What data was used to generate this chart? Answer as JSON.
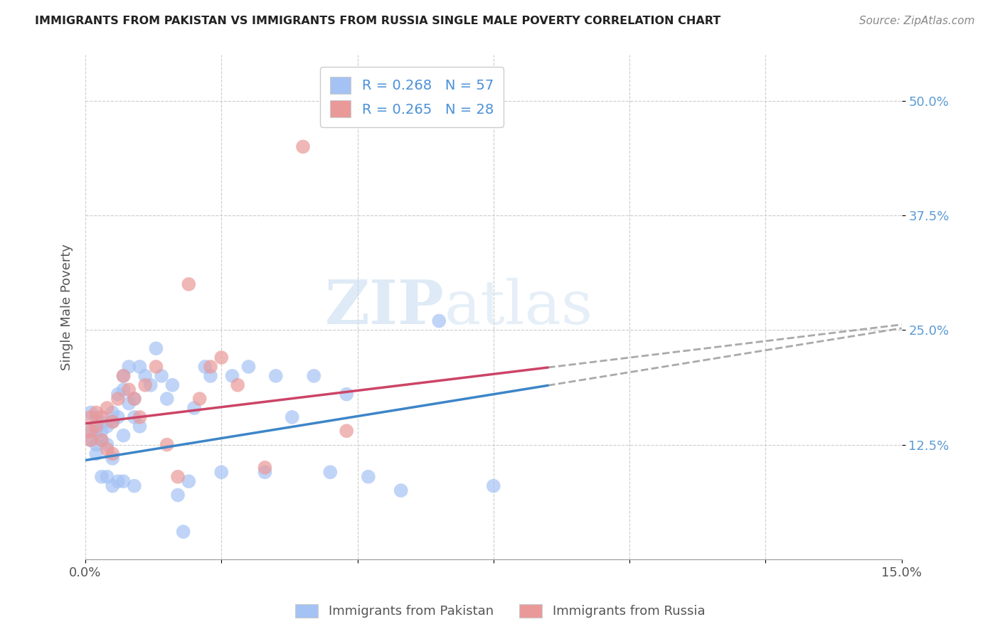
{
  "title": "IMMIGRANTS FROM PAKISTAN VS IMMIGRANTS FROM RUSSIA SINGLE MALE POVERTY CORRELATION CHART",
  "source": "Source: ZipAtlas.com",
  "ylabel": "Single Male Poverty",
  "xlim": [
    0.0,
    0.15
  ],
  "ylim": [
    0.0,
    0.55
  ],
  "yticks": [
    0.125,
    0.25,
    0.375,
    0.5
  ],
  "ytick_labels": [
    "12.5%",
    "25.0%",
    "37.5%",
    "50.0%"
  ],
  "xticks": [
    0.0,
    0.025,
    0.05,
    0.075,
    0.1,
    0.125,
    0.15
  ],
  "xtick_labels": [
    "0.0%",
    "",
    "",
    "",
    "",
    "",
    "15.0%"
  ],
  "pakistan_color": "#a4c2f4",
  "russia_color": "#ea9999",
  "pakistan_R": 0.268,
  "pakistan_N": 57,
  "russia_R": 0.265,
  "russia_N": 28,
  "pakistan_line_color": "#3d85c8",
  "russia_line_color": "#cc4466",
  "watermark_zip": "ZIP",
  "watermark_atlas": "atlas",
  "pakistan_line_intercept": 0.108,
  "pakistan_line_slope": 0.96,
  "russia_line_intercept": 0.148,
  "russia_line_slope": 0.72,
  "solid_line_end_x": 0.085,
  "pakistan_scatter_x": [
    0.001,
    0.001,
    0.001,
    0.002,
    0.002,
    0.002,
    0.002,
    0.003,
    0.003,
    0.003,
    0.003,
    0.004,
    0.004,
    0.004,
    0.005,
    0.005,
    0.005,
    0.005,
    0.006,
    0.006,
    0.006,
    0.007,
    0.007,
    0.007,
    0.007,
    0.008,
    0.008,
    0.009,
    0.009,
    0.009,
    0.01,
    0.01,
    0.011,
    0.012,
    0.013,
    0.014,
    0.015,
    0.016,
    0.017,
    0.018,
    0.019,
    0.02,
    0.022,
    0.023,
    0.025,
    0.027,
    0.03,
    0.033,
    0.035,
    0.038,
    0.042,
    0.045,
    0.048,
    0.052,
    0.058,
    0.065,
    0.075
  ],
  "pakistan_scatter_y": [
    0.16,
    0.14,
    0.13,
    0.155,
    0.14,
    0.125,
    0.115,
    0.15,
    0.14,
    0.13,
    0.09,
    0.145,
    0.125,
    0.09,
    0.16,
    0.15,
    0.11,
    0.08,
    0.18,
    0.155,
    0.085,
    0.2,
    0.185,
    0.135,
    0.085,
    0.21,
    0.17,
    0.175,
    0.155,
    0.08,
    0.21,
    0.145,
    0.2,
    0.19,
    0.23,
    0.2,
    0.175,
    0.19,
    0.07,
    0.03,
    0.085,
    0.165,
    0.21,
    0.2,
    0.095,
    0.2,
    0.21,
    0.095,
    0.2,
    0.155,
    0.2,
    0.095,
    0.18,
    0.09,
    0.075,
    0.26,
    0.08
  ],
  "russia_scatter_x": [
    0.001,
    0.001,
    0.001,
    0.002,
    0.002,
    0.003,
    0.003,
    0.004,
    0.004,
    0.005,
    0.005,
    0.006,
    0.007,
    0.008,
    0.009,
    0.01,
    0.011,
    0.013,
    0.015,
    0.017,
    0.019,
    0.021,
    0.023,
    0.025,
    0.028,
    0.033,
    0.04,
    0.048
  ],
  "russia_scatter_y": [
    0.155,
    0.14,
    0.13,
    0.16,
    0.145,
    0.155,
    0.13,
    0.165,
    0.12,
    0.15,
    0.115,
    0.175,
    0.2,
    0.185,
    0.175,
    0.155,
    0.19,
    0.21,
    0.125,
    0.09,
    0.3,
    0.175,
    0.21,
    0.22,
    0.19,
    0.1,
    0.45,
    0.14
  ]
}
